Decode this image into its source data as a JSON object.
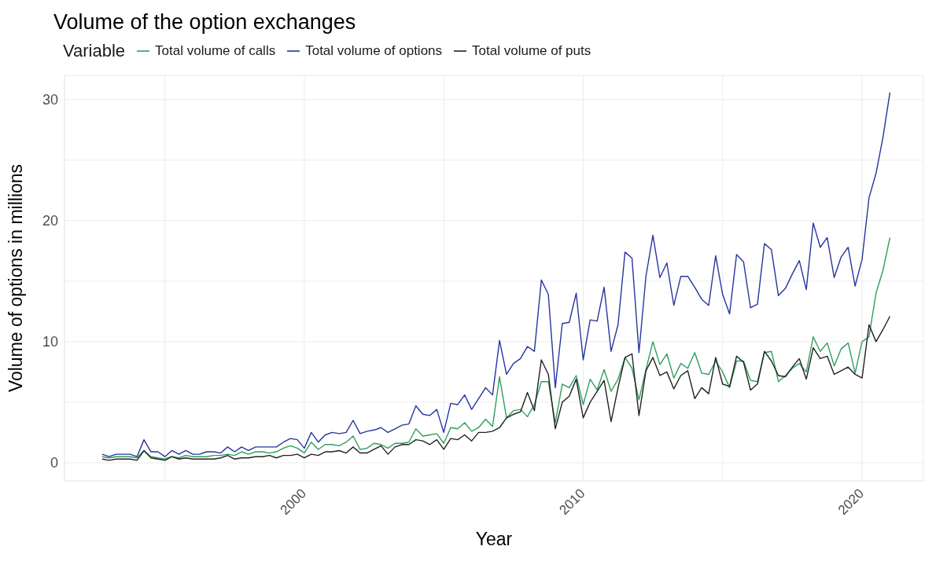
{
  "chart_data": {
    "type": "line",
    "title": "Volume of the option exchanges",
    "xlabel": "Year",
    "ylabel": "Volume of options in millions",
    "legend_title": "Variable",
    "legend": "top",
    "grid": true,
    "marker": "none",
    "line_style": "solid",
    "xlim": [
      1991.4,
      2022.2
    ],
    "xticks": [
      {
        "value": 1995,
        "label": null
      },
      2000,
      {
        "value": 2005,
        "label": null
      },
      2010,
      {
        "value": 2015,
        "label": null
      },
      2020
    ],
    "ylim": [
      -1.5,
      32
    ],
    "yticks": [
      0,
      {
        "value": 5,
        "label": null
      },
      10,
      {
        "value": 15,
        "label": null
      },
      20,
      {
        "value": 25,
        "label": null
      },
      30
    ],
    "x": [
      1992.75,
      1993,
      1993.25,
      1993.5,
      1993.75,
      1994,
      1994.25,
      1994.5,
      1994.75,
      1995,
      1995.25,
      1995.5,
      1995.75,
      1996,
      1996.25,
      1996.5,
      1996.75,
      1997,
      1997.25,
      1997.5,
      1997.75,
      1998,
      1998.25,
      1998.5,
      1998.75,
      1999,
      1999.25,
      1999.5,
      1999.75,
      2000,
      2000.25,
      2000.5,
      2000.75,
      2001,
      2001.25,
      2001.5,
      2001.75,
      2002,
      2002.25,
      2002.5,
      2002.75,
      2003,
      2003.25,
      2003.5,
      2003.75,
      2004,
      2004.25,
      2004.5,
      2004.75,
      2005,
      2005.25,
      2005.5,
      2005.75,
      2006,
      2006.25,
      2006.5,
      2006.75,
      2007,
      2007.25,
      2007.5,
      2007.75,
      2008,
      2008.25,
      2008.5,
      2008.75,
      2009,
      2009.25,
      2009.5,
      2009.75,
      2010,
      2010.25,
      2010.5,
      2010.75,
      2011,
      2011.25,
      2011.5,
      2011.75,
      2012,
      2012.25,
      2012.5,
      2012.75,
      2013,
      2013.25,
      2013.5,
      2013.75,
      2014,
      2014.25,
      2014.5,
      2014.75,
      2015,
      2015.25,
      2015.5,
      2015.75,
      2016,
      2016.25,
      2016.5,
      2016.75,
      2017,
      2017.25,
      2017.5,
      2017.75,
      2018,
      2018.25,
      2018.5,
      2018.75,
      2019,
      2019.25,
      2019.5,
      2019.75,
      2020,
      2020.25,
      2020.5,
      2020.75,
      2021
    ],
    "series": [
      {
        "name": "Total volume of calls",
        "color": "#2e9e5b",
        "values": [
          0.5,
          0.4,
          0.5,
          0.5,
          0.5,
          0.4,
          1.0,
          0.5,
          0.4,
          0.3,
          0.5,
          0.4,
          0.6,
          0.5,
          0.5,
          0.5,
          0.6,
          0.6,
          0.7,
          0.6,
          0.9,
          0.7,
          0.9,
          0.9,
          0.8,
          0.9,
          1.2,
          1.4,
          1.2,
          0.8,
          1.7,
          1.1,
          1.5,
          1.5,
          1.4,
          1.7,
          2.2,
          1.1,
          1.2,
          1.6,
          1.5,
          1.2,
          1.6,
          1.6,
          1.7,
          2.8,
          2.2,
          2.3,
          2.4,
          1.6,
          2.9,
          2.8,
          3.3,
          2.6,
          2.9,
          3.6,
          3.0,
          7.1,
          3.7,
          4.3,
          4.4,
          3.8,
          4.8,
          6.7,
          6.7,
          3.3,
          6.5,
          6.2,
          7.2,
          4.8,
          6.9,
          6.0,
          7.7,
          5.9,
          6.9,
          8.7,
          7.8,
          5.2,
          7.7,
          10.0,
          8.1,
          9.0,
          7.0,
          8.2,
          7.8,
          9.1,
          7.4,
          7.3,
          8.4,
          7.5,
          6.2,
          8.4,
          8.4,
          6.8,
          6.7,
          9.1,
          9.2,
          6.7,
          7.2,
          7.8,
          8.2,
          7.5,
          10.4,
          9.2,
          9.9,
          8.0,
          9.4,
          9.9,
          7.4,
          10.0,
          10.4,
          14.0,
          15.9,
          18.6
        ]
      },
      {
        "name": "Total volume of options",
        "color": "#2535a0",
        "values": [
          0.7,
          0.5,
          0.7,
          0.7,
          0.7,
          0.5,
          1.9,
          0.9,
          0.9,
          0.5,
          1.0,
          0.7,
          1.0,
          0.7,
          0.7,
          0.9,
          0.9,
          0.8,
          1.3,
          0.9,
          1.3,
          1.0,
          1.3,
          1.3,
          1.3,
          1.3,
          1.7,
          2.0,
          1.9,
          1.2,
          2.5,
          1.7,
          2.3,
          2.5,
          2.4,
          2.5,
          3.5,
          2.4,
          2.6,
          2.7,
          2.9,
          2.5,
          2.8,
          3.1,
          3.2,
          4.7,
          4.0,
          3.9,
          4.4,
          2.5,
          4.9,
          4.8,
          5.6,
          4.4,
          5.3,
          6.2,
          5.6,
          10.1,
          7.3,
          8.2,
          8.6,
          9.6,
          9.2,
          15.1,
          13.9,
          6.2,
          11.5,
          11.6,
          14.0,
          8.5,
          11.8,
          11.7,
          14.5,
          9.2,
          11.4,
          17.4,
          16.9,
          9.1,
          15.4,
          18.8,
          15.3,
          16.5,
          13.0,
          15.4,
          15.4,
          14.5,
          13.5,
          13.0,
          17.1,
          13.9,
          12.3,
          17.2,
          16.6,
          12.8,
          13.1,
          18.1,
          17.6,
          13.8,
          14.4,
          15.6,
          16.7,
          14.3,
          19.8,
          17.8,
          18.6,
          15.3,
          17.0,
          17.8,
          14.6,
          16.8,
          21.9,
          23.9,
          26.9,
          30.6
        ]
      },
      {
        "name": "Total volume of puts",
        "color": "#222222",
        "values": [
          0.3,
          0.2,
          0.3,
          0.3,
          0.3,
          0.2,
          1.0,
          0.4,
          0.3,
          0.2,
          0.5,
          0.3,
          0.4,
          0.3,
          0.3,
          0.3,
          0.3,
          0.4,
          0.6,
          0.3,
          0.4,
          0.4,
          0.5,
          0.5,
          0.6,
          0.4,
          0.6,
          0.6,
          0.7,
          0.4,
          0.7,
          0.6,
          0.9,
          0.9,
          1.0,
          0.8,
          1.3,
          0.8,
          0.8,
          1.1,
          1.4,
          0.7,
          1.3,
          1.5,
          1.5,
          1.9,
          1.8,
          1.5,
          1.9,
          1.1,
          2.0,
          1.9,
          2.3,
          1.8,
          2.5,
          2.5,
          2.6,
          2.9,
          3.7,
          4.0,
          4.2,
          5.8,
          4.3,
          8.5,
          7.3,
          2.8,
          5.0,
          5.5,
          6.9,
          3.7,
          5.0,
          5.9,
          6.8,
          3.4,
          6.2,
          8.7,
          9.0,
          3.9,
          7.6,
          8.7,
          7.2,
          7.5,
          6.1,
          7.2,
          7.6,
          5.3,
          6.2,
          5.7,
          8.7,
          6.5,
          6.3,
          8.8,
          8.3,
          6.0,
          6.5,
          9.2,
          8.4,
          7.2,
          7.1,
          7.9,
          8.6,
          6.9,
          9.5,
          8.6,
          8.8,
          7.3,
          7.6,
          7.9,
          7.3,
          7.0,
          11.4,
          10.0,
          11.0,
          12.1
        ]
      }
    ]
  }
}
